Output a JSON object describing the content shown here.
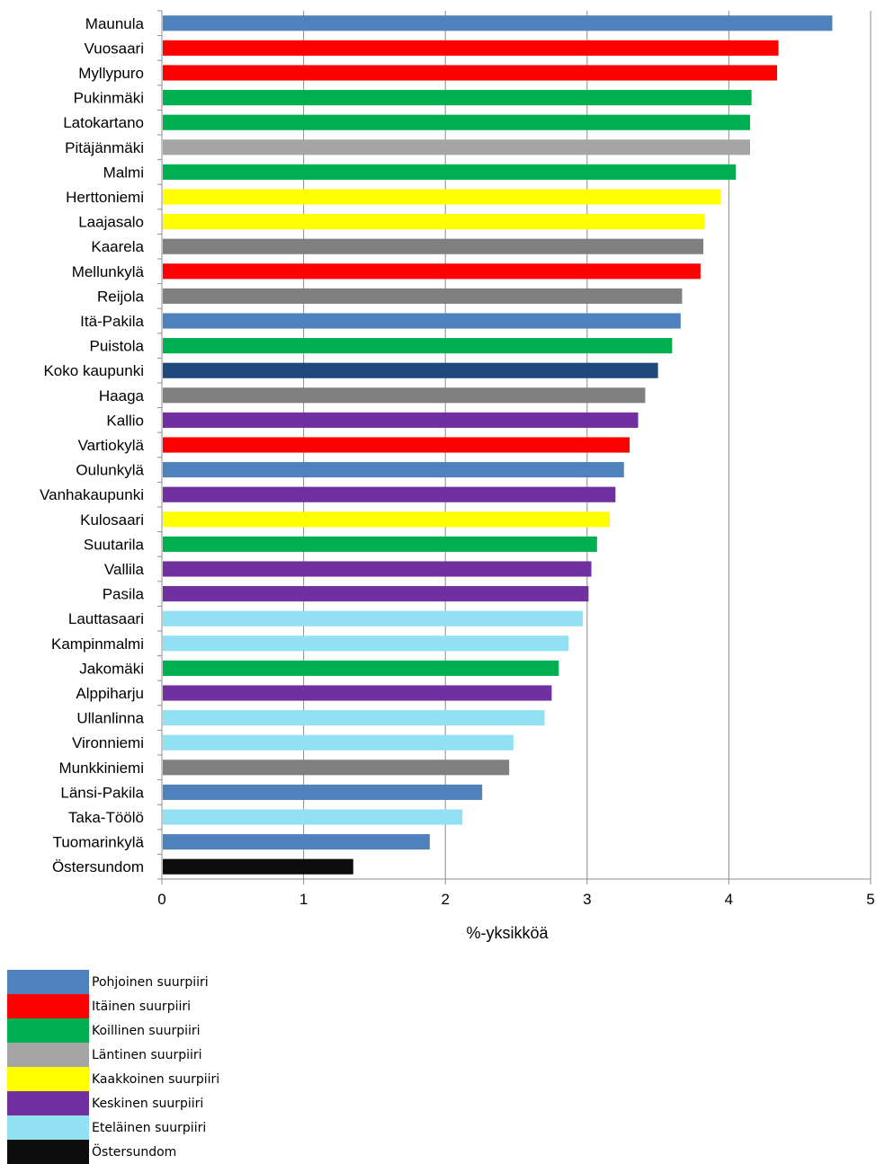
{
  "chart_data": {
    "type": "bar",
    "orientation": "horizontal",
    "title": "",
    "xlabel": "%-yksikköä",
    "ylabel": "",
    "xlim": [
      0,
      5
    ],
    "xticks": [
      "0",
      "1",
      "2",
      "3",
      "4",
      "5"
    ],
    "grid": true,
    "legend_position": "bottom-left",
    "categories": [
      "Maunula",
      "Vuosaari",
      "Myllypuro",
      "Pukinmäki",
      "Latokartano",
      "Pitäjänmäki",
      "Malmi",
      "Herttoniemi",
      "Laajasalo",
      "Kaarela",
      "Mellunkylä",
      "Reijola",
      "Itä-Pakila",
      "Puistola",
      "Koko kaupunki",
      "Haaga",
      "Kallio",
      "Vartiokylä",
      "Oulunkylä",
      "Vanhakaupunki",
      "Kulosaari",
      "Suutarila",
      "Vallila",
      "Pasila",
      "Lauttasaari",
      "Kampinmalmi",
      "Jakomäki",
      "Alppiharju",
      "Ullanlinna",
      "Vironniemi",
      "Munkkiniemi",
      "Länsi-Pakila",
      "Taka-Töölö",
      "Tuomarinkylä",
      "Östersundom"
    ],
    "values": [
      4.73,
      4.35,
      4.34,
      4.16,
      4.15,
      4.15,
      4.05,
      3.94,
      3.83,
      3.82,
      3.8,
      3.67,
      3.66,
      3.6,
      3.5,
      3.41,
      3.36,
      3.3,
      3.26,
      3.2,
      3.16,
      3.07,
      3.03,
      3.01,
      2.97,
      2.87,
      2.8,
      2.75,
      2.7,
      2.48,
      2.45,
      2.26,
      2.12,
      1.89,
      1.35
    ],
    "groups": [
      "Pohjoinen",
      "Itäinen",
      "Itäinen",
      "Koillinen",
      "Koillinen",
      "Läntinen-light",
      "Koillinen",
      "Kaakkoinen",
      "Kaakkoinen",
      "Läntinen",
      "Itäinen",
      "Läntinen",
      "Pohjoinen",
      "Koillinen",
      "Koko kaupunki",
      "Läntinen",
      "Keskinen",
      "Itäinen",
      "Pohjoinen",
      "Keskinen",
      "Kaakkoinen",
      "Koillinen",
      "Keskinen",
      "Keskinen",
      "Eteläinen",
      "Eteläinen",
      "Koillinen",
      "Keskinen",
      "Eteläinen",
      "Eteläinen",
      "Läntinen",
      "Pohjoinen",
      "Eteläinen",
      "Pohjoinen",
      "Östersundom"
    ],
    "group_colors": {
      "Pohjoinen": "#4f81bd",
      "Itäinen": "#ff0000",
      "Koillinen": "#00b050",
      "Läntinen-light": "#a5a5a5",
      "Läntinen": "#808080",
      "Kaakkoinen": "#ffff00",
      "Keskinen": "#7030a0",
      "Eteläinen": "#92e1f3",
      "Koko kaupunki": "#1f497d",
      "Östersundom": "#0d0d0d"
    },
    "legend": [
      {
        "label": "Pohjoinen suurpiiri",
        "color": "#4f81bd"
      },
      {
        "label": "Itäinen suurpiiri",
        "color": "#ff0000"
      },
      {
        "label": "Koillinen suurpiiri",
        "color": "#00b050"
      },
      {
        "label": "Läntinen suurpiiri",
        "color": "#a5a5a5"
      },
      {
        "label": "Kaakkoinen suurpiiri",
        "color": "#ffff00"
      },
      {
        "label": "Keskinen suurpiiri",
        "color": "#7030a0"
      },
      {
        "label": "Eteläinen suurpiiri",
        "color": "#92e1f3"
      },
      {
        "label": "Östersundom",
        "color": "#0d0d0d"
      }
    ]
  }
}
